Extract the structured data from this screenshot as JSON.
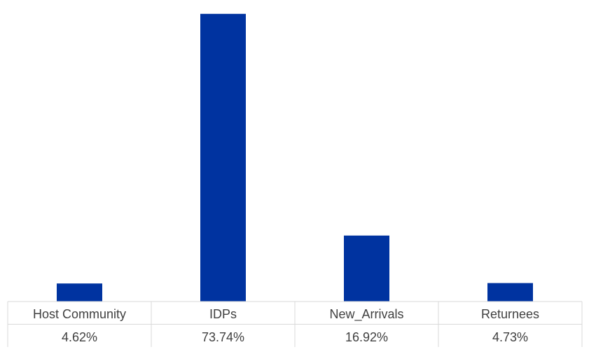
{
  "chart_data": {
    "type": "bar",
    "categories": [
      "Host Community",
      "IDPs",
      "New_Arrivals",
      "Returnees"
    ],
    "values": [
      4.62,
      73.74,
      16.92,
      4.73
    ],
    "value_labels": [
      "4.62%",
      "73.74%",
      "16.92%",
      "4.73%"
    ],
    "ylim": [
      0,
      75.5
    ],
    "bar_color": "#0033A0",
    "grid": false,
    "legend": "none",
    "data_table": true
  }
}
